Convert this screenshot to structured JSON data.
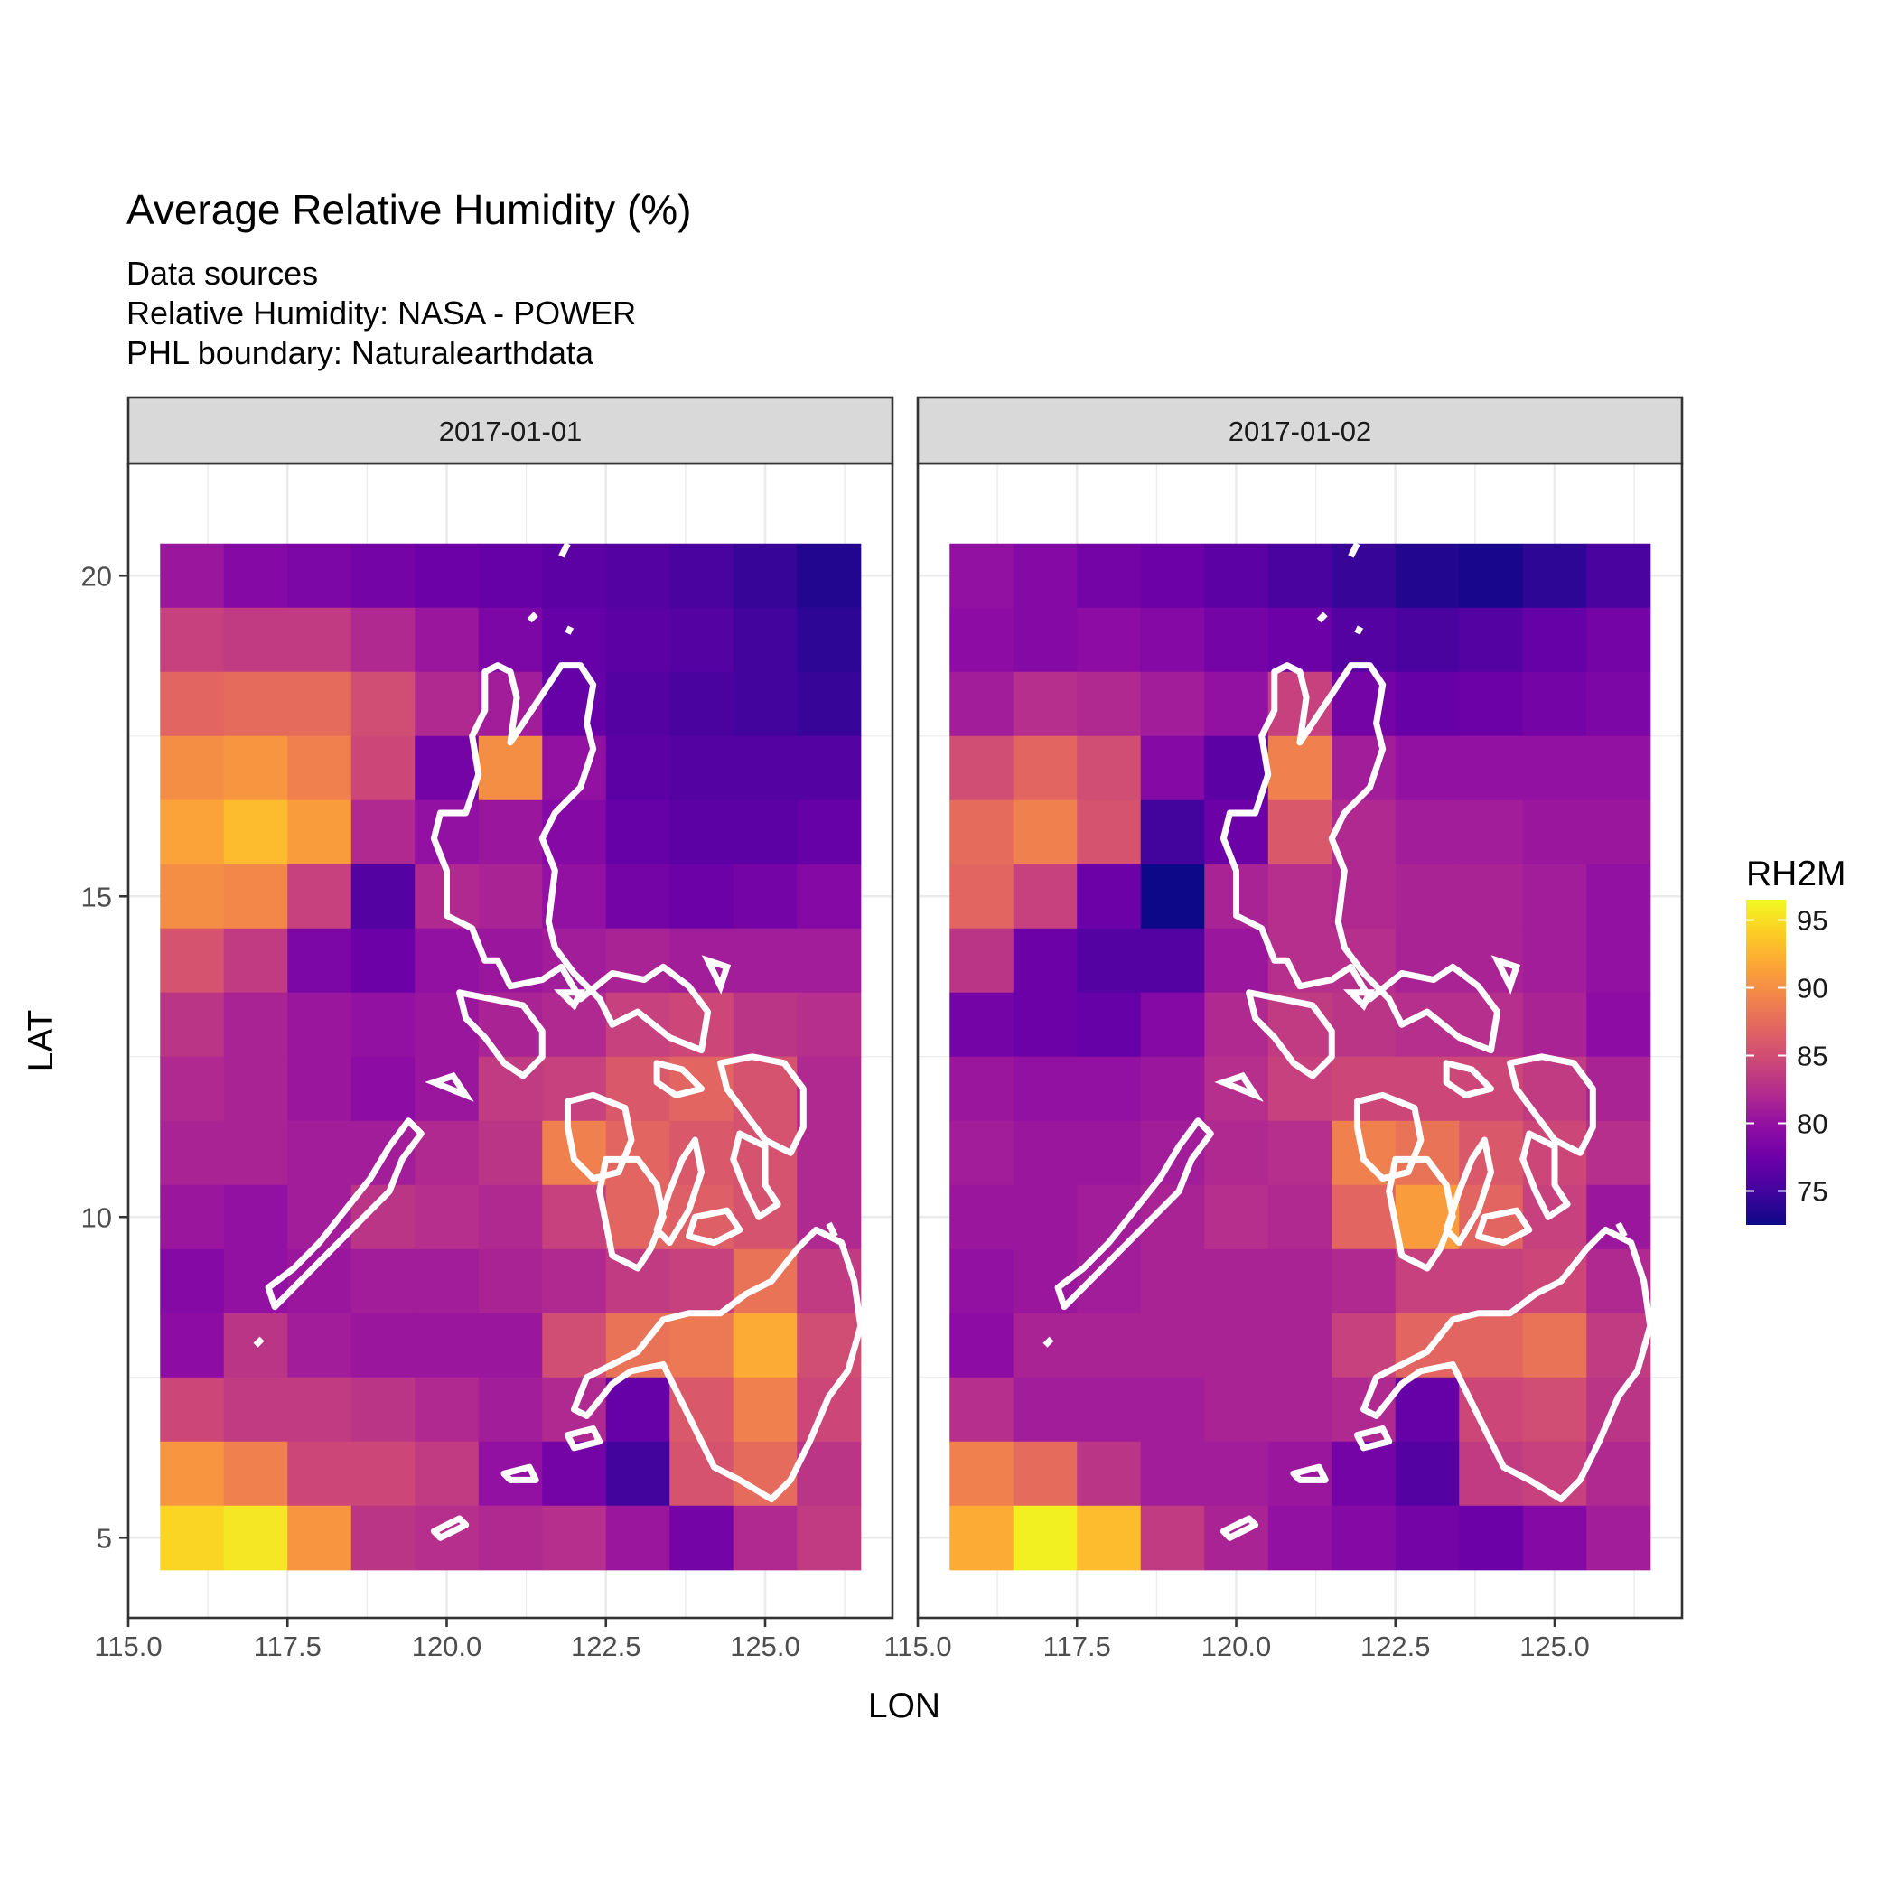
{
  "chart_data": {
    "type": "heatmap",
    "title": "Average Relative Humidity (%)",
    "subtitle_lines": [
      "Data sources",
      "Relative Humidity: NASA - POWER",
      "PHL boundary: Naturalearthdata"
    ],
    "xlabel": "LON",
    "ylabel": "LAT",
    "xlim": [
      115.0,
      127.0
    ],
    "ylim": [
      3.75,
      21.75
    ],
    "x_ticks": [
      115.0,
      117.5,
      120.0,
      122.5,
      125.0
    ],
    "x_tick_labels": [
      "115.0",
      "117.5",
      "120.0",
      "122.5",
      "125.0"
    ],
    "y_ticks": [
      5,
      10,
      15,
      20
    ],
    "y_tick_labels": [
      "5",
      "10",
      "15",
      "20"
    ],
    "grid": true,
    "legend": {
      "title": "RH2M",
      "placement": "right",
      "colormap": "plasma",
      "range": [
        72.5,
        96.5
      ],
      "ticks": [
        75,
        80,
        85,
        90,
        95
      ],
      "tick_labels": [
        "75",
        "80",
        "85",
        "90",
        "95"
      ]
    },
    "lon_centers": [
      116,
      117,
      118,
      119,
      120,
      121,
      122,
      123,
      124,
      125,
      126
    ],
    "lat_centers": [
      20,
      19,
      18,
      17,
      16,
      15,
      14,
      13,
      12,
      11,
      10,
      9,
      8,
      7,
      6,
      5
    ],
    "boundary_color": "#ffffff",
    "panels": [
      {
        "label": "2017-01-01",
        "values": [
          [
            80.5,
            79.0,
            78.5,
            78.0,
            77.5,
            77.0,
            76.5,
            76.0,
            75.5,
            74.5,
            73.5
          ],
          [
            84.0,
            83.5,
            83.5,
            82.0,
            80.5,
            78.5,
            77.0,
            76.5,
            76.0,
            75.0,
            74.0
          ],
          [
            87.0,
            87.5,
            87.5,
            85.0,
            82.0,
            81.0,
            77.0,
            76.0,
            75.5,
            75.0,
            74.5
          ],
          [
            90.0,
            90.5,
            89.0,
            84.5,
            78.0,
            90.0,
            80.0,
            76.5,
            76.0,
            76.0,
            76.0
          ],
          [
            91.5,
            93.0,
            91.0,
            82.0,
            80.0,
            80.5,
            79.0,
            77.0,
            76.5,
            76.5,
            77.0
          ],
          [
            90.0,
            89.5,
            84.0,
            76.0,
            82.0,
            81.5,
            80.0,
            78.0,
            77.5,
            78.0,
            79.0
          ],
          [
            85.5,
            83.5,
            78.5,
            77.5,
            80.0,
            80.5,
            81.0,
            81.5,
            81.0,
            81.0,
            81.0
          ],
          [
            83.0,
            81.5,
            80.5,
            80.0,
            80.5,
            81.5,
            82.0,
            84.0,
            84.5,
            83.0,
            82.5
          ],
          [
            82.0,
            81.5,
            80.5,
            79.5,
            80.5,
            83.5,
            84.0,
            86.0,
            87.0,
            85.5,
            82.0
          ],
          [
            81.5,
            81.5,
            81.0,
            81.0,
            82.0,
            83.0,
            89.0,
            87.0,
            86.0,
            85.5,
            82.0
          ],
          [
            80.5,
            80.0,
            81.0,
            83.0,
            82.5,
            82.0,
            84.0,
            87.0,
            86.5,
            85.5,
            82.0
          ],
          [
            79.0,
            80.0,
            80.5,
            81.0,
            81.0,
            81.5,
            82.0,
            83.5,
            84.0,
            88.0,
            83.5
          ],
          [
            79.5,
            83.0,
            81.0,
            80.5,
            80.5,
            80.5,
            85.0,
            88.0,
            88.5,
            92.0,
            85.0
          ],
          [
            84.5,
            83.5,
            83.5,
            83.0,
            82.0,
            81.0,
            82.0,
            77.0,
            86.0,
            89.0,
            84.5
          ],
          [
            90.5,
            89.0,
            84.5,
            84.5,
            83.5,
            80.0,
            78.0,
            75.0,
            85.5,
            87.5,
            83.0
          ],
          [
            94.5,
            95.5,
            90.5,
            83.0,
            82.5,
            82.0,
            82.5,
            80.5,
            78.0,
            82.0,
            83.5
          ]
        ]
      },
      {
        "label": "2017-01-02",
        "values": [
          [
            80.0,
            79.0,
            78.0,
            77.5,
            76.5,
            75.5,
            74.5,
            73.5,
            73.0,
            74.0,
            75.5
          ],
          [
            79.5,
            79.0,
            79.5,
            79.0,
            78.0,
            77.5,
            76.0,
            75.5,
            76.0,
            77.0,
            78.0
          ],
          [
            81.0,
            82.5,
            82.0,
            81.0,
            80.0,
            84.0,
            78.0,
            77.0,
            77.5,
            78.0,
            78.5
          ],
          [
            85.0,
            87.0,
            85.0,
            79.0,
            76.5,
            89.0,
            81.0,
            80.0,
            80.0,
            80.0,
            80.0
          ],
          [
            87.5,
            89.0,
            85.5,
            75.0,
            77.5,
            86.0,
            82.0,
            81.0,
            81.0,
            80.5,
            80.5
          ],
          [
            87.0,
            84.0,
            77.5,
            72.5,
            81.5,
            82.5,
            82.0,
            81.5,
            81.5,
            81.0,
            80.0
          ],
          [
            83.0,
            77.5,
            76.0,
            76.0,
            80.5,
            82.5,
            82.5,
            81.5,
            81.5,
            81.0,
            80.0
          ],
          [
            78.0,
            77.5,
            77.0,
            79.0,
            82.0,
            83.5,
            83.0,
            82.5,
            82.5,
            81.5,
            79.5
          ],
          [
            80.5,
            80.0,
            80.0,
            80.5,
            82.5,
            84.0,
            84.5,
            84.5,
            84.5,
            83.5,
            81.5
          ],
          [
            81.0,
            80.5,
            80.5,
            81.0,
            82.0,
            82.5,
            89.0,
            88.0,
            86.0,
            84.5,
            82.5
          ],
          [
            80.5,
            80.5,
            81.0,
            81.5,
            82.5,
            82.0,
            87.0,
            91.0,
            87.0,
            84.0,
            80.5
          ],
          [
            80.0,
            80.5,
            81.0,
            81.5,
            81.5,
            81.5,
            82.0,
            84.0,
            84.0,
            84.5,
            82.0
          ],
          [
            79.5,
            81.5,
            81.5,
            81.5,
            81.5,
            81.5,
            84.0,
            87.0,
            87.0,
            88.0,
            83.5
          ],
          [
            82.5,
            81.0,
            81.0,
            81.0,
            81.5,
            81.5,
            82.0,
            77.0,
            84.5,
            85.0,
            83.0
          ],
          [
            89.0,
            87.5,
            83.0,
            81.0,
            81.0,
            80.5,
            78.0,
            76.0,
            83.5,
            84.0,
            82.0
          ],
          [
            92.0,
            96.0,
            93.0,
            83.5,
            81.5,
            80.0,
            79.0,
            78.0,
            77.5,
            79.0,
            81.0
          ]
        ]
      }
    ]
  }
}
